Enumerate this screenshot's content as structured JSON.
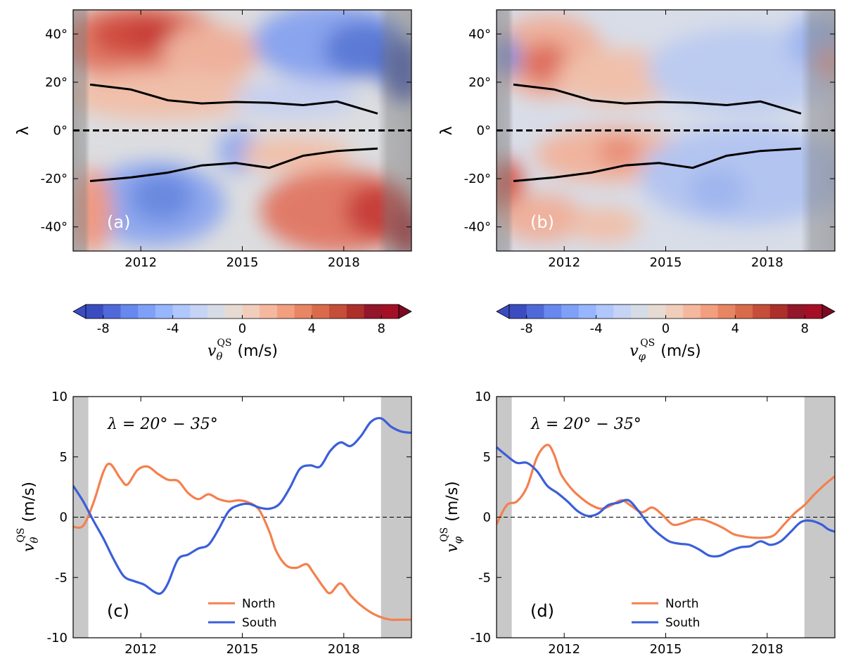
{
  "chart_data": [
    {
      "panel": "a",
      "type": "heatmap",
      "panel_label": "(a)",
      "ylabel": "λ",
      "xticks": [
        "2012",
        "2015",
        "2018"
      ],
      "xtick_values": [
        2012,
        2015,
        2018
      ],
      "yticks": [
        "40°",
        "20°",
        "0°",
        "-20°",
        "-40°"
      ],
      "ytick_values": [
        40,
        20,
        0,
        -20,
        -40
      ],
      "xlim": [
        2010,
        2020
      ],
      "ylim": [
        -50,
        50
      ],
      "colorbar": {
        "label_prefix": "v",
        "label_sub": "θ",
        "label_sup": "QS",
        "label_unit": "(m/s)",
        "ticks": [
          "-8",
          "-4",
          "0",
          "4",
          "8"
        ],
        "tick_values": [
          -8,
          -4,
          0,
          4,
          8
        ],
        "range": [
          -9,
          9
        ]
      },
      "north_boundary": {
        "x": [
          2010.5,
          2011.7,
          2012.8,
          2013.8,
          2014.8,
          2015.8,
          2016.8,
          2017.8,
          2019.0
        ],
        "y": [
          19,
          17,
          12.5,
          11.2,
          11.8,
          11.5,
          10.5,
          12,
          7
        ]
      },
      "south_boundary": {
        "x": [
          2010.5,
          2011.7,
          2012.8,
          2013.8,
          2014.8,
          2015.8,
          2016.8,
          2017.8,
          2019.0
        ],
        "y": [
          -21,
          -19.5,
          -17.5,
          -14.5,
          -13.5,
          -15.5,
          -10.5,
          -8.5,
          -7.5
        ]
      },
      "equator_line": {
        "y": 0,
        "style": "dashed"
      },
      "shaded_x": [
        [
          2010,
          2010.5
        ],
        [
          2019.0,
          2020
        ]
      ]
    },
    {
      "panel": "b",
      "type": "heatmap",
      "panel_label": "(b)",
      "ylabel": "λ",
      "xticks": [
        "2012",
        "2015",
        "2018"
      ],
      "xtick_values": [
        2012,
        2015,
        2018
      ],
      "yticks": [
        "40°",
        "20°",
        "0°",
        "-20°",
        "-40°"
      ],
      "ytick_values": [
        40,
        20,
        0,
        -20,
        -40
      ],
      "xlim": [
        2010,
        2020
      ],
      "ylim": [
        -50,
        50
      ],
      "colorbar": {
        "label_prefix": "v",
        "label_sub": "φ",
        "label_sup": "QS",
        "label_unit": "(m/s)",
        "ticks": [
          "-8",
          "-4",
          "0",
          "4",
          "8"
        ],
        "tick_values": [
          -8,
          -4,
          0,
          4,
          8
        ],
        "range": [
          -9,
          9
        ]
      },
      "north_boundary": {
        "x": [
          2010.5,
          2011.7,
          2012.8,
          2013.8,
          2014.8,
          2015.8,
          2016.8,
          2017.8,
          2019.0
        ],
        "y": [
          19,
          17,
          12.5,
          11.2,
          11.8,
          11.5,
          10.5,
          12,
          7
        ]
      },
      "south_boundary": {
        "x": [
          2010.5,
          2011.7,
          2012.8,
          2013.8,
          2014.8,
          2015.8,
          2016.8,
          2017.8,
          2019.0
        ],
        "y": [
          -21,
          -19.5,
          -17.5,
          -14.5,
          -13.5,
          -15.5,
          -10.5,
          -8.5,
          -7.5
        ]
      },
      "equator_line": {
        "y": 0,
        "style": "dashed"
      },
      "shaded_x": [
        [
          2010,
          2010.5
        ],
        [
          2019.0,
          2020
        ]
      ]
    },
    {
      "panel": "c",
      "type": "line",
      "panel_label": "(c)",
      "annotation": "λ = 20° − 35°",
      "ylabel_prefix": "v",
      "ylabel_sub": "θ",
      "ylabel_sup": "QS",
      "ylabel_unit": "(m/s)",
      "xticks": [
        "2012",
        "2015",
        "2018"
      ],
      "xtick_values": [
        2012,
        2015,
        2018
      ],
      "yticks": [
        "10",
        "5",
        "0",
        "-5",
        "-10"
      ],
      "ytick_values": [
        10,
        5,
        0,
        -5,
        -10
      ],
      "xlim": [
        2010,
        2020
      ],
      "ylim": [
        -10,
        10
      ],
      "shaded_x": [
        [
          2010,
          2010.45
        ],
        [
          2019.1,
          2020
        ]
      ],
      "legend": [
        "North",
        "South"
      ],
      "series": [
        {
          "name": "North",
          "color": "#f4804e",
          "x": [
            2010.0,
            2010.3,
            2010.6,
            2010.9,
            2011.1,
            2011.4,
            2011.6,
            2011.9,
            2012.2,
            2012.5,
            2012.8,
            2013.1,
            2013.4,
            2013.7,
            2014.0,
            2014.3,
            2014.6,
            2014.9,
            2015.2,
            2015.5,
            2015.8,
            2016.0,
            2016.3,
            2016.6,
            2016.9,
            2017.1,
            2017.4,
            2017.6,
            2017.9,
            2018.2,
            2018.5,
            2018.8,
            2019.1,
            2019.4,
            2019.7,
            2020.0
          ],
          "y": [
            -0.8,
            -0.7,
            1.2,
            3.8,
            4.4,
            3.2,
            2.7,
            3.9,
            4.2,
            3.6,
            3.1,
            3.0,
            2.0,
            1.5,
            1.9,
            1.5,
            1.3,
            1.4,
            1.2,
            0.6,
            -1.2,
            -2.8,
            -4.0,
            -4.2,
            -3.9,
            -4.6,
            -5.8,
            -6.3,
            -5.5,
            -6.5,
            -7.3,
            -7.9,
            -8.3,
            -8.5,
            -8.5,
            -8.5
          ]
        },
        {
          "name": "South",
          "color": "#3b5fd9",
          "x": [
            2010.0,
            2010.3,
            2010.6,
            2010.9,
            2011.2,
            2011.5,
            2011.8,
            2012.1,
            2012.4,
            2012.6,
            2012.8,
            2013.1,
            2013.4,
            2013.7,
            2014.0,
            2014.3,
            2014.6,
            2014.9,
            2015.2,
            2015.5,
            2015.8,
            2016.1,
            2016.4,
            2016.7,
            2017.0,
            2017.3,
            2017.6,
            2017.9,
            2018.2,
            2018.5,
            2018.8,
            2019.1,
            2019.4,
            2019.7,
            2020.0
          ],
          "y": [
            2.6,
            1.3,
            -0.3,
            -1.8,
            -3.5,
            -4.9,
            -5.3,
            -5.6,
            -6.2,
            -6.3,
            -5.5,
            -3.5,
            -3.1,
            -2.6,
            -2.3,
            -1.0,
            0.5,
            1.0,
            1.1,
            0.8,
            0.7,
            1.1,
            2.4,
            4.0,
            4.3,
            4.2,
            5.5,
            6.2,
            5.9,
            6.7,
            7.9,
            8.2,
            7.5,
            7.1,
            7.0
          ]
        }
      ]
    },
    {
      "panel": "d",
      "type": "line",
      "panel_label": "(d)",
      "annotation": "λ = 20° − 35°",
      "ylabel_prefix": "v",
      "ylabel_sub": "φ",
      "ylabel_sup": "QS",
      "ylabel_unit": "(m/s)",
      "xticks": [
        "2012",
        "2015",
        "2018"
      ],
      "xtick_values": [
        2012,
        2015,
        2018
      ],
      "yticks": [
        "10",
        "5",
        "0",
        "-5",
        "-10"
      ],
      "ytick_values": [
        10,
        5,
        0,
        -5,
        -10
      ],
      "xlim": [
        2010,
        2020
      ],
      "ylim": [
        -10,
        10
      ],
      "shaded_x": [
        [
          2010,
          2010.45
        ],
        [
          2019.1,
          2020
        ]
      ],
      "legend": [
        "North",
        "South"
      ],
      "series": [
        {
          "name": "North",
          "color": "#f4804e",
          "x": [
            2010.0,
            2010.3,
            2010.6,
            2010.9,
            2011.2,
            2011.5,
            2011.7,
            2011.9,
            2012.2,
            2012.5,
            2012.8,
            2013.1,
            2013.4,
            2013.7,
            2014.0,
            2014.3,
            2014.6,
            2014.9,
            2015.2,
            2015.5,
            2015.8,
            2016.1,
            2016.4,
            2016.7,
            2017.0,
            2017.3,
            2017.6,
            2017.9,
            2018.2,
            2018.5,
            2018.8,
            2019.1,
            2019.4,
            2019.7,
            2020.0
          ],
          "y": [
            -0.6,
            1.0,
            1.3,
            2.5,
            5.0,
            6.0,
            5.2,
            3.6,
            2.4,
            1.6,
            1.0,
            0.7,
            1.0,
            1.4,
            0.9,
            0.4,
            0.8,
            0.2,
            -0.6,
            -0.5,
            -0.2,
            -0.2,
            -0.5,
            -0.9,
            -1.4,
            -1.6,
            -1.7,
            -1.7,
            -1.5,
            -0.6,
            0.3,
            1.0,
            1.9,
            2.7,
            3.4
          ]
        },
        {
          "name": "South",
          "color": "#3b5fd9",
          "x": [
            2010.0,
            2010.3,
            2010.6,
            2010.9,
            2011.2,
            2011.5,
            2011.8,
            2012.1,
            2012.4,
            2012.7,
            2013.0,
            2013.3,
            2013.6,
            2013.9,
            2014.2,
            2014.5,
            2014.8,
            2015.1,
            2015.4,
            2015.7,
            2016.0,
            2016.3,
            2016.6,
            2016.9,
            2017.2,
            2017.5,
            2017.8,
            2018.1,
            2018.4,
            2018.7,
            2019.0,
            2019.3,
            2019.6,
            2019.8,
            2020.0
          ],
          "y": [
            5.8,
            5.1,
            4.5,
            4.5,
            3.8,
            2.6,
            2.0,
            1.3,
            0.5,
            0.1,
            0.3,
            1.0,
            1.2,
            1.4,
            0.5,
            -0.6,
            -1.4,
            -2.0,
            -2.2,
            -2.3,
            -2.7,
            -3.2,
            -3.2,
            -2.8,
            -2.5,
            -2.4,
            -2.0,
            -2.3,
            -2.0,
            -1.2,
            -0.4,
            -0.3,
            -0.6,
            -1.0,
            -1.2
          ]
        }
      ]
    }
  ]
}
